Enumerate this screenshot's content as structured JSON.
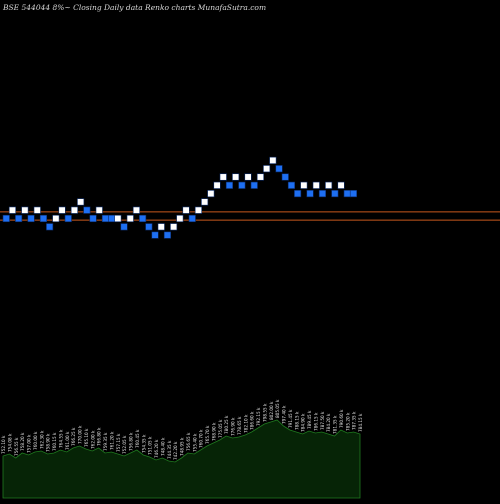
{
  "header": {
    "title": "BSE 544044  8%~  Closing Daily data  Renko  charts MunafaSutra.com"
  },
  "colors": {
    "background": "#000000",
    "up_brick": "#ffffff",
    "down_brick": "#1e6ff2",
    "brick_border": "#0b2a66",
    "price_lines": "#c8581c",
    "volume_fill": "#062406",
    "volume_stroke": "#1f7a1f",
    "volume_label": "#e6e6e6"
  },
  "chart_data": {
    "type": "renko",
    "title": "BSE 544044  8%~  Closing Daily data  Renko  charts MunafaSutra.com",
    "grid": false,
    "bricks": [
      {
        "level": 0,
        "dir": "down"
      },
      {
        "level": 1,
        "dir": "up"
      },
      {
        "level": 0,
        "dir": "down"
      },
      {
        "level": 1,
        "dir": "up"
      },
      {
        "level": 0,
        "dir": "down"
      },
      {
        "level": 1,
        "dir": "up"
      },
      {
        "level": 0,
        "dir": "down"
      },
      {
        "level": -1,
        "dir": "down"
      },
      {
        "level": 0,
        "dir": "up"
      },
      {
        "level": 1,
        "dir": "up"
      },
      {
        "level": 0,
        "dir": "down"
      },
      {
        "level": 1,
        "dir": "up"
      },
      {
        "level": 2,
        "dir": "up"
      },
      {
        "level": 1,
        "dir": "down"
      },
      {
        "level": 0,
        "dir": "down"
      },
      {
        "level": 1,
        "dir": "up"
      },
      {
        "level": 0,
        "dir": "down"
      },
      {
        "level": 0,
        "dir": "down"
      },
      {
        "level": 0,
        "dir": "up"
      },
      {
        "level": -1,
        "dir": "down"
      },
      {
        "level": 0,
        "dir": "up"
      },
      {
        "level": 1,
        "dir": "up"
      },
      {
        "level": 0,
        "dir": "down"
      },
      {
        "level": -1,
        "dir": "down"
      },
      {
        "level": -2,
        "dir": "down"
      },
      {
        "level": -1,
        "dir": "up"
      },
      {
        "level": -2,
        "dir": "down"
      },
      {
        "level": -1,
        "dir": "up"
      },
      {
        "level": 0,
        "dir": "up"
      },
      {
        "level": 1,
        "dir": "up"
      },
      {
        "level": 0,
        "dir": "down"
      },
      {
        "level": 1,
        "dir": "up"
      },
      {
        "level": 2,
        "dir": "up"
      },
      {
        "level": 3,
        "dir": "up"
      },
      {
        "level": 4,
        "dir": "up"
      },
      {
        "level": 5,
        "dir": "up"
      },
      {
        "level": 4,
        "dir": "down"
      },
      {
        "level": 5,
        "dir": "up"
      },
      {
        "level": 4,
        "dir": "down"
      },
      {
        "level": 5,
        "dir": "up"
      },
      {
        "level": 4,
        "dir": "down"
      },
      {
        "level": 5,
        "dir": "up"
      },
      {
        "level": 6,
        "dir": "up"
      },
      {
        "level": 7,
        "dir": "up"
      },
      {
        "level": 6,
        "dir": "down"
      },
      {
        "level": 5,
        "dir": "down"
      },
      {
        "level": 4,
        "dir": "down"
      },
      {
        "level": 3,
        "dir": "down"
      },
      {
        "level": 4,
        "dir": "up"
      },
      {
        "level": 3,
        "dir": "down"
      },
      {
        "level": 4,
        "dir": "up"
      },
      {
        "level": 3,
        "dir": "down"
      },
      {
        "level": 4,
        "dir": "up"
      },
      {
        "level": 3,
        "dir": "down"
      },
      {
        "level": 4,
        "dir": "up"
      },
      {
        "level": 3,
        "dir": "down"
      },
      {
        "level": 3,
        "dir": "down"
      }
    ],
    "price_lines": [
      {
        "level": 0.8
      },
      {
        "level": -0.2
      }
    ],
    "volume": {
      "values": [
        42,
        44,
        40,
        45,
        43,
        46,
        47,
        44,
        45,
        48,
        46,
        50,
        52,
        49,
        47,
        50,
        45,
        46,
        44,
        42,
        45,
        48,
        43,
        41,
        38,
        40,
        37,
        36,
        40,
        45,
        44,
        48,
        52,
        55,
        58,
        62,
        60,
        61,
        63,
        66,
        70,
        74,
        76,
        78,
        72,
        68,
        66,
        64,
        67,
        65,
        66,
        64,
        62,
        68,
        65,
        66,
        64
      ],
      "labels": [
        "752.10 k",
        "754.08 k",
        "756.55 k",
        "758.20 k",
        "757.00 k",
        "760.00 k",
        "762.30 k",
        "758.90 k",
        "760.15 k",
        "764.55 k",
        "761.00 k",
        "766.25 k",
        "770.00 k",
        "765.10 k",
        "762.00 k",
        "766.80 k",
        "759.35 k",
        "761.20 k",
        "757.15 k",
        "752.05 k",
        "756.80 k",
        "760.45 k",
        "754.35 k",
        "751.05 k",
        "746.20 k",
        "748.40 k",
        "744.35 k",
        "742.20 k",
        "748.95 k",
        "756.65 k",
        "755.40 k",
        "760.70 k",
        "765.70 k",
        "768.90 k",
        "775.05 k",
        "780.25 k",
        "776.90 k",
        "778.65 k",
        "782.10 k",
        "786.60 k",
        "792.15 k",
        "798.55 k",
        "802.00 k",
        "805.05 k",
        "797.40 k",
        "791.45 k",
        "788.15 k",
        "784.90 k",
        "789.45 k",
        "786.15 k",
        "787.50 k",
        "784.20 k",
        "781.35 k",
        "790.60 k",
        "785.20 k",
        "787.35 k",
        "784.15 k"
      ]
    }
  }
}
